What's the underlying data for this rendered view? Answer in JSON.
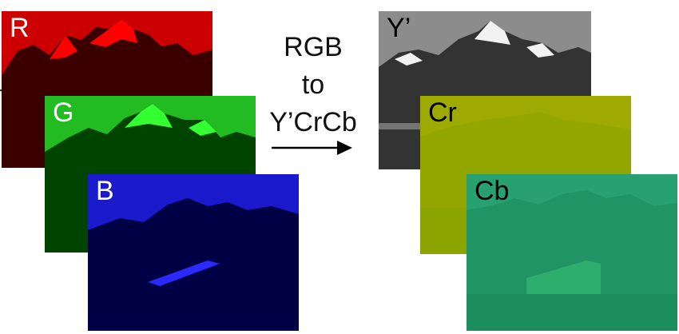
{
  "conversion_caption": {
    "line1": "RGB",
    "line2": "to",
    "line3": "Y’CrCb"
  },
  "panels": {
    "r": {
      "label": "R",
      "label_color": "#ffffff",
      "tint": "#ff0000",
      "dark": "#3a0000",
      "sky": "#cc0000"
    },
    "g": {
      "label": "G",
      "label_color": "#ffffff",
      "tint": "#33ff33",
      "dark": "#004400",
      "sky": "#22bb22"
    },
    "b": {
      "label": "B",
      "label_color": "#ffffff",
      "tint": "#2a2aff",
      "dark": "#000044",
      "sky": "#1a1acc"
    },
    "y": {
      "label": "Y’",
      "label_color": "#000000",
      "tint": "#f2f2f2",
      "dark": "#333333",
      "sky": "#8c8c8c"
    },
    "cr": {
      "label": "Cr",
      "label_color": "#000000",
      "tint": "#c0b000",
      "dark": "#7fa000",
      "sky": "#9faa00"
    },
    "cb": {
      "label": "Cb",
      "label_color": "#000000",
      "tint": "#3ecf7a",
      "dark": "#1a8a5a",
      "sky": "#28a070"
    }
  }
}
